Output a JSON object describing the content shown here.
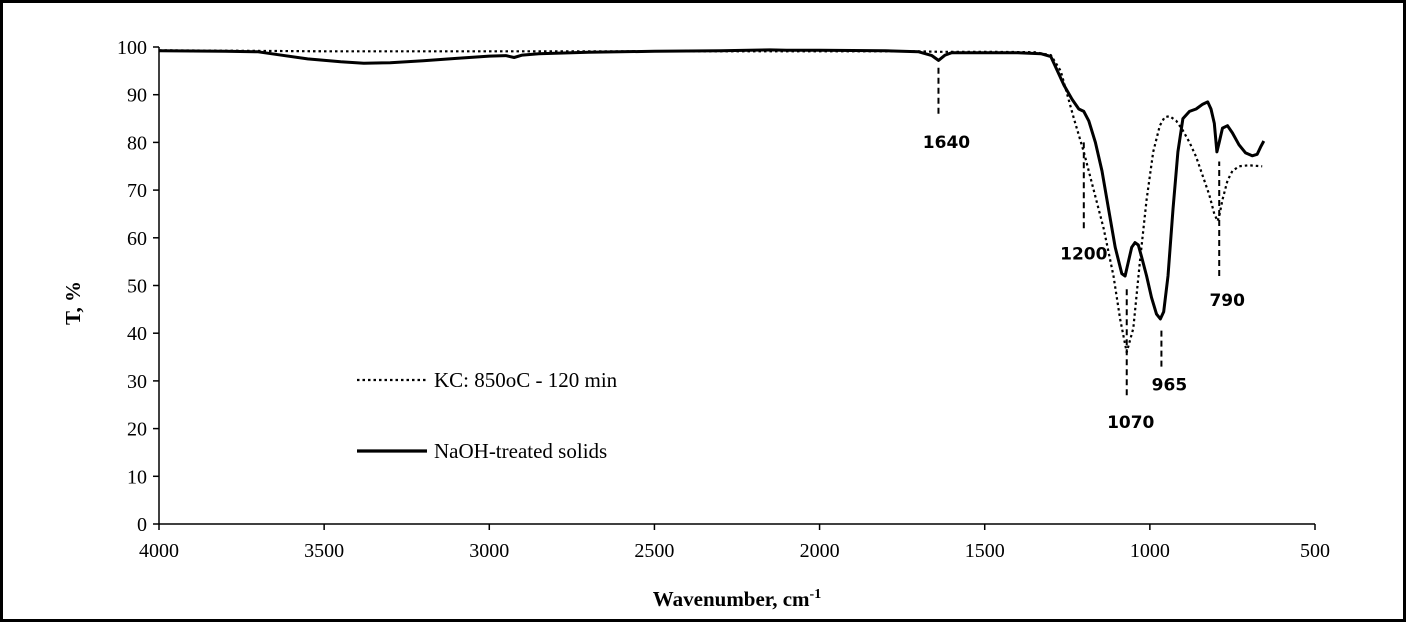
{
  "chart_data": {
    "type": "line",
    "title": "",
    "xlabel": "Wavenumber, cm",
    "xlabel_superscript": "-1",
    "ylabel": "T, %",
    "xlim": [
      4000,
      500
    ],
    "ylim": [
      0,
      100
    ],
    "x_ticks": [
      "4000",
      "3500",
      "3000",
      "2500",
      "2000",
      "1500",
      "1000",
      "500"
    ],
    "y_ticks": [
      "0",
      "10",
      "20",
      "30",
      "40",
      "50",
      "60",
      "70",
      "80",
      "90",
      "100"
    ],
    "x_tick_values": [
      4000,
      3500,
      3000,
      2500,
      2000,
      1500,
      1000,
      500
    ],
    "y_tick_values": [
      0,
      10,
      20,
      30,
      40,
      50,
      60,
      70,
      80,
      90,
      100
    ],
    "grid": false,
    "legend_position": "left",
    "series": [
      {
        "name": "KC: 850oC - 120 min",
        "style": "dotted",
        "color": "#000000",
        "points": [
          [
            4000,
            99.3
          ],
          [
            3500,
            99.1
          ],
          [
            3000,
            99.1
          ],
          [
            2500,
            99.1
          ],
          [
            2000,
            99.1
          ],
          [
            1700,
            99.1
          ],
          [
            1640,
            99.0
          ],
          [
            1500,
            99.0
          ],
          [
            1350,
            98.9
          ],
          [
            1300,
            98.3
          ],
          [
            1270,
            95
          ],
          [
            1250,
            90
          ],
          [
            1230,
            85
          ],
          [
            1200,
            78
          ],
          [
            1170,
            70
          ],
          [
            1140,
            62
          ],
          [
            1110,
            52
          ],
          [
            1090,
            43
          ],
          [
            1070,
            36
          ],
          [
            1050,
            41
          ],
          [
            1030,
            55
          ],
          [
            1010,
            68
          ],
          [
            990,
            78
          ],
          [
            970,
            83.5
          ],
          [
            955,
            85.3
          ],
          [
            940,
            85.5
          ],
          [
            920,
            84.5
          ],
          [
            900,
            82.5
          ],
          [
            880,
            80
          ],
          [
            860,
            77
          ],
          [
            840,
            73
          ],
          [
            820,
            69
          ],
          [
            805,
            65
          ],
          [
            795,
            63.5
          ],
          [
            790,
            64.5
          ],
          [
            780,
            68
          ],
          [
            765,
            72
          ],
          [
            750,
            74
          ],
          [
            730,
            75
          ],
          [
            700,
            75.2
          ],
          [
            660,
            75
          ]
        ]
      },
      {
        "name": "NaOH-treated solids",
        "style": "solid",
        "color": "#000000",
        "points": [
          [
            4000,
            99.2
          ],
          [
            3800,
            99.1
          ],
          [
            3700,
            99.0
          ],
          [
            3650,
            98.5
          ],
          [
            3550,
            97.5
          ],
          [
            3450,
            96.9
          ],
          [
            3380,
            96.6
          ],
          [
            3300,
            96.7
          ],
          [
            3200,
            97.1
          ],
          [
            3100,
            97.6
          ],
          [
            3000,
            98.1
          ],
          [
            2950,
            98.2
          ],
          [
            2925,
            97.8
          ],
          [
            2900,
            98.3
          ],
          [
            2850,
            98.6
          ],
          [
            2700,
            98.9
          ],
          [
            2500,
            99.1
          ],
          [
            2300,
            99.2
          ],
          [
            2150,
            99.4
          ],
          [
            2100,
            99.3
          ],
          [
            2000,
            99.3
          ],
          [
            1800,
            99.2
          ],
          [
            1700,
            99.0
          ],
          [
            1660,
            98.2
          ],
          [
            1640,
            97.2
          ],
          [
            1620,
            98.3
          ],
          [
            1600,
            98.8
          ],
          [
            1500,
            98.8
          ],
          [
            1400,
            98.8
          ],
          [
            1330,
            98.6
          ],
          [
            1300,
            98
          ],
          [
            1280,
            95
          ],
          [
            1260,
            92
          ],
          [
            1235,
            89
          ],
          [
            1215,
            87
          ],
          [
            1200,
            86.5
          ],
          [
            1185,
            84.5
          ],
          [
            1165,
            80
          ],
          [
            1145,
            74
          ],
          [
            1125,
            66
          ],
          [
            1105,
            58
          ],
          [
            1085,
            52.5
          ],
          [
            1075,
            52
          ],
          [
            1065,
            55
          ],
          [
            1055,
            58
          ],
          [
            1045,
            59
          ],
          [
            1035,
            58.5
          ],
          [
            1025,
            56
          ],
          [
            1010,
            52
          ],
          [
            995,
            47.5
          ],
          [
            980,
            44
          ],
          [
            968,
            43
          ],
          [
            958,
            44.5
          ],
          [
            945,
            52
          ],
          [
            930,
            66
          ],
          [
            915,
            78
          ],
          [
            900,
            85
          ],
          [
            880,
            86.5
          ],
          [
            860,
            87
          ],
          [
            840,
            88
          ],
          [
            825,
            88.5
          ],
          [
            815,
            87
          ],
          [
            805,
            84
          ],
          [
            797,
            78
          ],
          [
            790,
            80
          ],
          [
            780,
            83
          ],
          [
            765,
            83.5
          ],
          [
            750,
            82
          ],
          [
            730,
            79.5
          ],
          [
            710,
            77.8
          ],
          [
            690,
            77.2
          ],
          [
            675,
            77.5
          ],
          [
            665,
            79
          ],
          [
            655,
            80.3
          ]
        ]
      }
    ],
    "annotations": [
      {
        "text": "1640",
        "x": 1640,
        "line_from": 86,
        "line_to": 96
      },
      {
        "text": "1200",
        "x": 1200,
        "line_from": 62,
        "line_to": 80
      },
      {
        "text": "1070",
        "x": 1070,
        "line_from": 27,
        "line_to": 50
      },
      {
        "text": "965",
        "x": 965,
        "line_from": 33,
        "line_to": 41
      },
      {
        "text": "790",
        "x": 790,
        "line_from": 52,
        "line_to": 76
      }
    ]
  }
}
